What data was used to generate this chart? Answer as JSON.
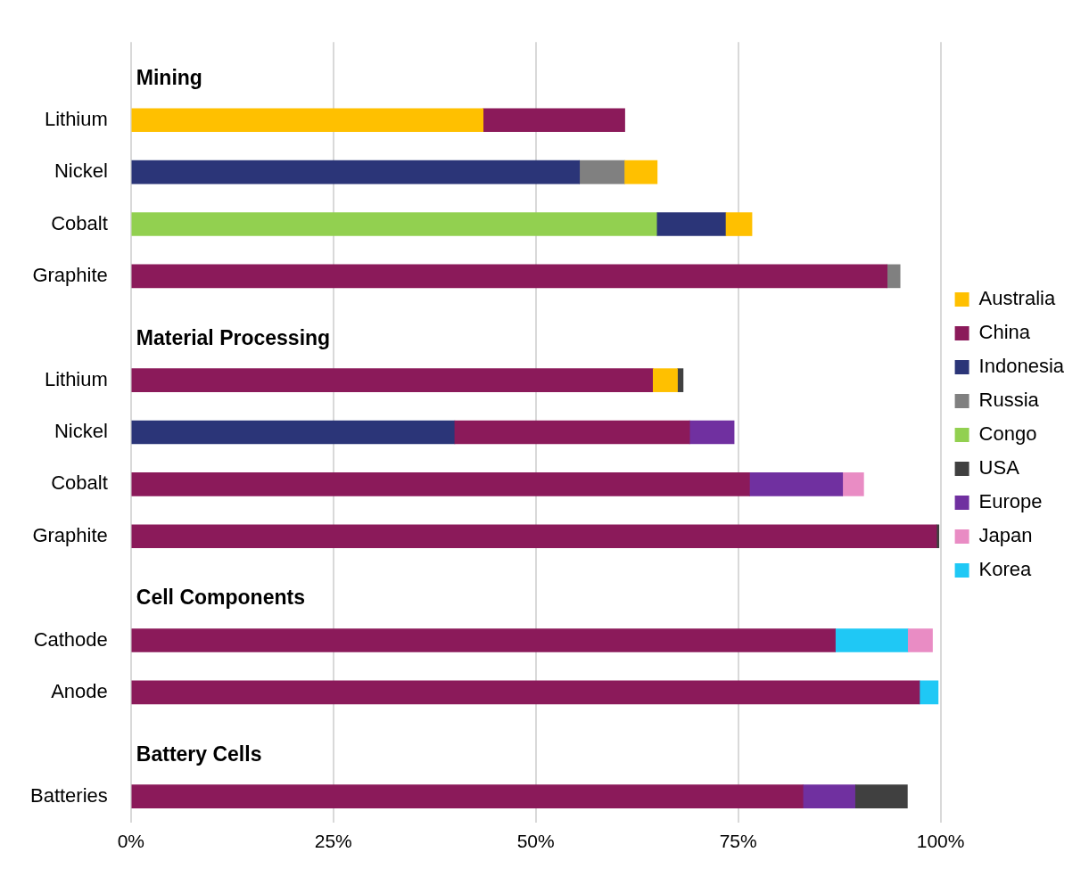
{
  "chart_data": {
    "type": "bar",
    "orientation": "horizontal",
    "categories": [
      null,
      "Lithium",
      "Nickel",
      "Cobalt",
      "Graphite",
      null,
      "Lithium",
      "Nickel",
      "Cobalt",
      "Graphite",
      null,
      "Cathode",
      "Anode",
      null,
      "Batteries"
    ],
    "annotations": [
      "Mining",
      "Material Processing",
      "Cell Components",
      "Battery Cells"
    ],
    "series": [
      {
        "name": "Australia",
        "color": "#ffc000",
        "values": [
          null,
          43.5,
          4.0,
          3.2,
          null,
          null,
          3.0,
          null,
          null,
          null,
          null,
          null,
          null,
          null,
          null
        ],
        "base": [
          null,
          0,
          61,
          73.5,
          null,
          null,
          64.5,
          null,
          null,
          null,
          null,
          null,
          null,
          null,
          null
        ]
      },
      {
        "name": "China",
        "color": "#8b1a5a",
        "values": [
          null,
          17.5,
          null,
          null,
          93.4,
          null,
          64.5,
          29,
          76.4,
          99.5,
          null,
          87,
          97.4,
          null,
          83
        ],
        "base": [
          null,
          43.5,
          null,
          null,
          0,
          null,
          0,
          40,
          0,
          0,
          null,
          0,
          0,
          null,
          0
        ]
      },
      {
        "name": "Indonesia",
        "color": "#2b3578",
        "values": [
          null,
          null,
          55.4,
          8.5,
          null,
          null,
          null,
          40,
          null,
          null,
          null,
          null,
          null,
          null,
          null
        ],
        "base": [
          null,
          null,
          0,
          65,
          null,
          null,
          null,
          0,
          null,
          null,
          null,
          null,
          null,
          null,
          null
        ]
      },
      {
        "name": "Russia",
        "color": "#808080",
        "values": [
          null,
          null,
          5.6,
          null,
          1.6,
          null,
          null,
          null,
          null,
          null,
          null,
          null,
          null,
          null,
          null
        ],
        "base": [
          null,
          null,
          55.4,
          null,
          93.4,
          null,
          null,
          null,
          null,
          null,
          null,
          null,
          null,
          null,
          null
        ]
      },
      {
        "name": "Congo",
        "color": "#92d050",
        "values": [
          null,
          null,
          null,
          65,
          null,
          null,
          null,
          null,
          null,
          null,
          null,
          null,
          null,
          null,
          null
        ],
        "base": [
          null,
          null,
          null,
          0,
          null,
          null,
          null,
          null,
          null,
          null,
          null,
          null,
          null,
          null,
          null
        ]
      },
      {
        "name": "USA",
        "color": "#404040",
        "values": [
          null,
          null,
          null,
          null,
          null,
          null,
          0.7,
          null,
          null,
          0.3,
          null,
          null,
          null,
          null,
          6.4
        ],
        "base": [
          null,
          null,
          null,
          null,
          null,
          null,
          67.5,
          null,
          null,
          99.5,
          null,
          null,
          null,
          null,
          89.5
        ]
      },
      {
        "name": "Europe",
        "color": "#7030a0",
        "values": [
          null,
          null,
          null,
          null,
          null,
          null,
          null,
          5.5,
          11.5,
          null,
          null,
          null,
          null,
          null,
          6.5
        ],
        "base": [
          null,
          null,
          null,
          null,
          null,
          null,
          null,
          69,
          76.4,
          null,
          null,
          null,
          null,
          null,
          83
        ]
      },
      {
        "name": "Japan",
        "color": "#e98cc4",
        "values": [
          null,
          null,
          null,
          null,
          null,
          null,
          null,
          null,
          2.6,
          null,
          null,
          3,
          null,
          null,
          null
        ],
        "base": [
          null,
          null,
          null,
          null,
          null,
          null,
          null,
          null,
          87.9,
          null,
          null,
          96,
          null,
          null,
          null
        ]
      },
      {
        "name": "Korea",
        "color": "#1fc8f5",
        "values": [
          null,
          null,
          null,
          null,
          null,
          null,
          null,
          null,
          null,
          null,
          null,
          9,
          2.3,
          null,
          null
        ],
        "base": [
          null,
          null,
          null,
          null,
          null,
          null,
          null,
          null,
          null,
          null,
          null,
          87,
          97.4,
          null,
          null
        ]
      }
    ],
    "xlim": [
      0,
      100
    ],
    "xticks": [
      {
        "value": 0,
        "label": "0%"
      },
      {
        "value": 25,
        "label": "25%"
      },
      {
        "value": 50,
        "label": "50%"
      },
      {
        "value": 75,
        "label": "75%"
      },
      {
        "value": 100,
        "label": "100%"
      }
    ],
    "grid": "x",
    "legend": "right"
  }
}
